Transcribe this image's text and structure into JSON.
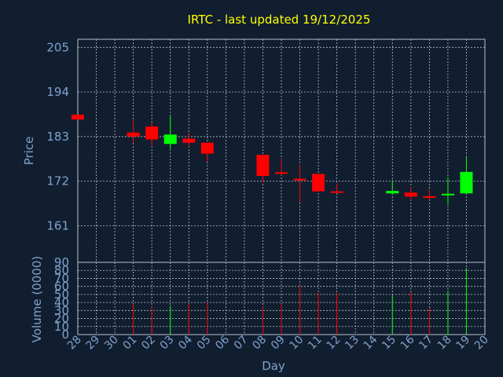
{
  "chart_data": {
    "type": "candlestick",
    "title": "IRTC - last updated 19/12/2025",
    "xlabel": "Day",
    "days": [
      "28",
      "29",
      "30",
      "01",
      "02",
      "03",
      "04",
      "05",
      "06",
      "07",
      "08",
      "09",
      "10",
      "11",
      "12",
      "13",
      "14",
      "15",
      "16",
      "17",
      "18",
      "19",
      "20"
    ],
    "price_panel": {
      "ylabel": "Price",
      "yticks": [
        "205",
        "194",
        "183",
        "172",
        "161"
      ],
      "ylim": [
        152,
        207
      ],
      "candles": [
        {
          "day": "28",
          "open": 188.4,
          "close": 187.2,
          "high": 188.4,
          "low": 187.2
        },
        {
          "day": "01",
          "open": 184.0,
          "close": 183.0,
          "high": 187.0,
          "low": 181.5
        },
        {
          "day": "02",
          "open": 185.5,
          "close": 182.3,
          "high": 186.5,
          "low": 180.8
        },
        {
          "day": "03",
          "open": 181.2,
          "close": 183.5,
          "high": 188.0,
          "low": 180.0
        },
        {
          "day": "04",
          "open": 182.5,
          "close": 181.5,
          "high": 184.0,
          "low": 180.5
        },
        {
          "day": "05",
          "open": 181.5,
          "close": 178.8,
          "high": 181.5,
          "low": 176.8
        },
        {
          "day": "08",
          "open": 178.5,
          "close": 173.3,
          "high": 178.5,
          "low": 171.8
        },
        {
          "day": "09",
          "open": 174.2,
          "close": 173.8,
          "high": 177.5,
          "low": 173.5
        },
        {
          "day": "10",
          "open": 172.6,
          "close": 172.2,
          "high": 176.0,
          "low": 166.8
        },
        {
          "day": "11",
          "open": 173.8,
          "close": 169.5,
          "high": 173.8,
          "low": 169.5
        },
        {
          "day": "12",
          "open": 169.5,
          "close": 169.2,
          "high": 171.5,
          "low": 169.2
        },
        {
          "day": "15",
          "open": 169.0,
          "close": 169.6,
          "high": 172.3,
          "low": 168.6
        },
        {
          "day": "16",
          "open": 169.2,
          "close": 168.2,
          "high": 170.5,
          "low": 167.2
        },
        {
          "day": "17",
          "open": 168.3,
          "close": 167.9,
          "high": 170.0,
          "low": 167.4
        },
        {
          "day": "18",
          "open": 168.6,
          "close": 168.9,
          "high": 173.0,
          "low": 166.2
        },
        {
          "day": "19",
          "open": 169.0,
          "close": 174.3,
          "high": 178.0,
          "low": 169.0
        }
      ]
    },
    "volume_panel": {
      "ylabel": "Volume (0000)",
      "yticks": [
        "90",
        "80",
        "70",
        "60",
        "50",
        "40",
        "30",
        "20",
        "10",
        "0"
      ],
      "ylim": [
        0,
        90
      ],
      "bars": [
        {
          "day": "01",
          "value": 38
        },
        {
          "day": "02",
          "value": 35
        },
        {
          "day": "03",
          "value": 36
        },
        {
          "day": "04",
          "value": 39
        },
        {
          "day": "05",
          "value": 40
        },
        {
          "day": "08",
          "value": 35
        },
        {
          "day": "09",
          "value": 38
        },
        {
          "day": "10",
          "value": 62
        },
        {
          "day": "11",
          "value": 52
        },
        {
          "day": "12",
          "value": 52
        },
        {
          "day": "15",
          "value": 49
        },
        {
          "day": "16",
          "value": 53
        },
        {
          "day": "17",
          "value": 33
        },
        {
          "day": "18",
          "value": 55
        },
        {
          "day": "19",
          "value": 83
        }
      ]
    },
    "colors": {
      "background": "#111e30",
      "up": "#00ff00",
      "down": "#ff0000",
      "grid": "#b9c2cc",
      "axis_text": "#7fa2cc",
      "title": "#ffff00"
    }
  }
}
